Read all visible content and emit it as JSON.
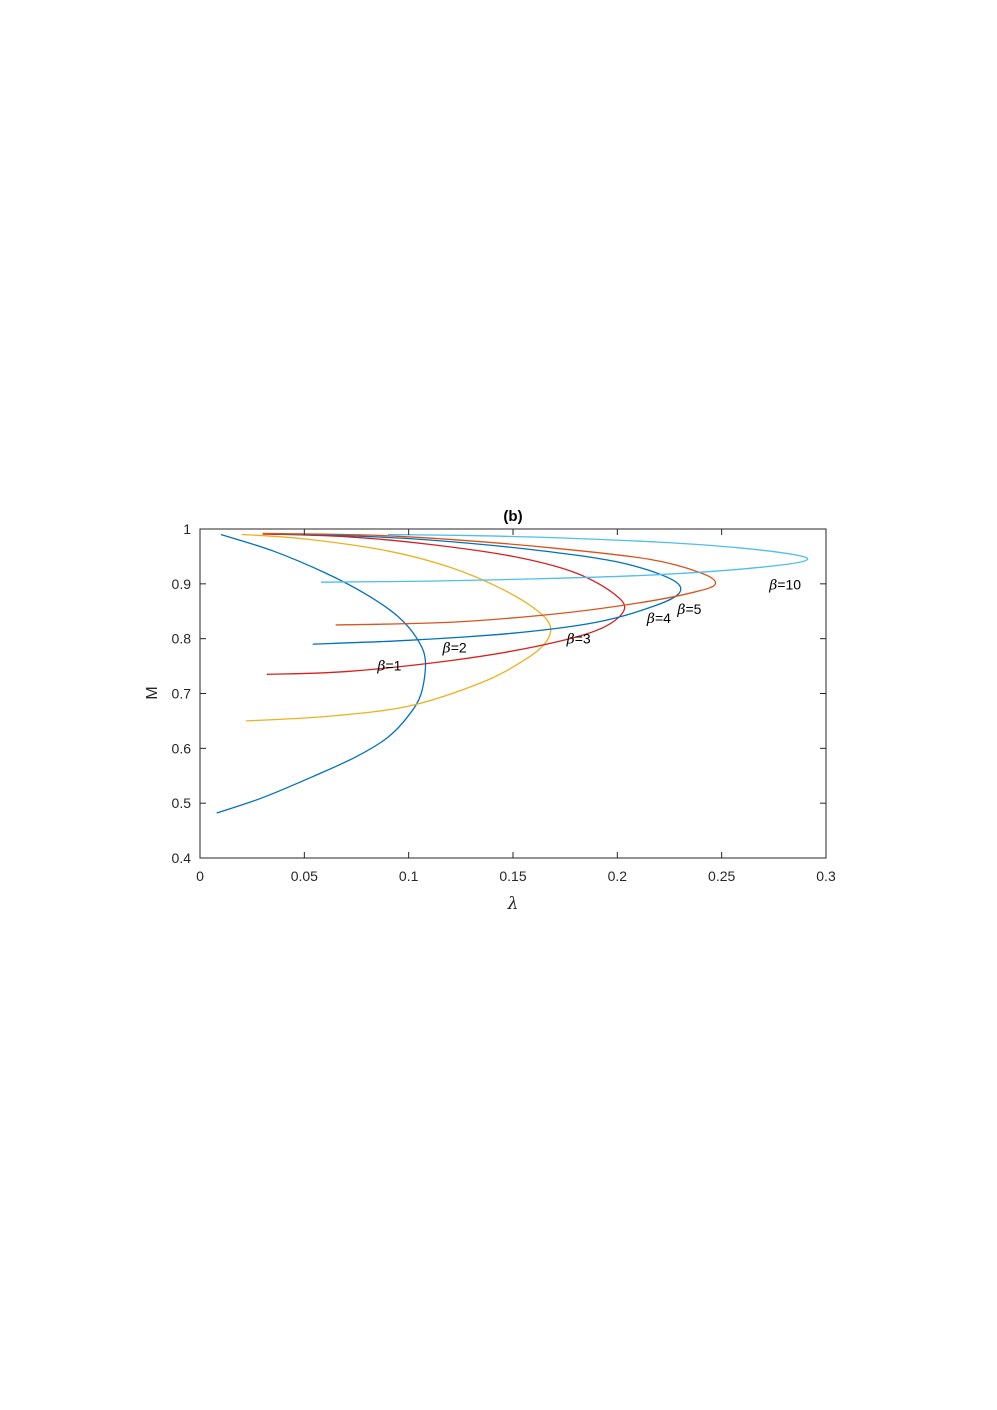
{
  "chart_data": {
    "type": "line",
    "title": "(b)",
    "xlabel": "λ",
    "ylabel": "M",
    "xlim": [
      0,
      0.3
    ],
    "ylim": [
      0.4,
      1
    ],
    "xticks": [
      0,
      0.05,
      0.1,
      0.15,
      0.2,
      0.25,
      0.3
    ],
    "xtick_labels": [
      "0",
      "0.05",
      "0.1",
      "0.15",
      "0.2",
      "0.25",
      "0.3"
    ],
    "yticks": [
      0.4,
      0.5,
      0.6,
      0.7,
      0.8,
      0.9,
      1
    ],
    "ytick_labels": [
      "0.4",
      "0.5",
      "0.6",
      "0.7",
      "0.8",
      "0.9",
      "1"
    ],
    "grid": false,
    "legend": "none",
    "series": [
      {
        "name": "β=1",
        "label": "β=1",
        "color": "#0072BD",
        "points": [
          [
            0.008,
            0.482
          ],
          [
            0.03,
            0.51
          ],
          [
            0.055,
            0.55
          ],
          [
            0.075,
            0.585
          ],
          [
            0.09,
            0.62
          ],
          [
            0.1,
            0.66
          ],
          [
            0.106,
            0.7
          ],
          [
            0.108,
            0.76
          ],
          [
            0.104,
            0.8
          ],
          [
            0.095,
            0.84
          ],
          [
            0.08,
            0.88
          ],
          [
            0.06,
            0.92
          ],
          [
            0.035,
            0.96
          ],
          [
            0.01,
            0.99
          ]
        ]
      },
      {
        "name": "β=2",
        "label": "β=2",
        "color": "#EDB120",
        "points": [
          [
            0.022,
            0.65
          ],
          [
            0.06,
            0.658
          ],
          [
            0.1,
            0.677
          ],
          [
            0.135,
            0.72
          ],
          [
            0.155,
            0.76
          ],
          [
            0.165,
            0.79
          ],
          [
            0.168,
            0.82
          ],
          [
            0.162,
            0.85
          ],
          [
            0.145,
            0.89
          ],
          [
            0.12,
            0.93
          ],
          [
            0.09,
            0.96
          ],
          [
            0.05,
            0.982
          ],
          [
            0.02,
            0.99
          ]
        ]
      },
      {
        "name": "β=3",
        "label": "β=3",
        "color": "#D62020",
        "points": [
          [
            0.032,
            0.735
          ],
          [
            0.07,
            0.74
          ],
          [
            0.12,
            0.76
          ],
          [
            0.16,
            0.785
          ],
          [
            0.19,
            0.815
          ],
          [
            0.203,
            0.85
          ],
          [
            0.199,
            0.88
          ],
          [
            0.18,
            0.92
          ],
          [
            0.15,
            0.95
          ],
          [
            0.11,
            0.972
          ],
          [
            0.07,
            0.986
          ],
          [
            0.03,
            0.991
          ]
        ]
      },
      {
        "name": "β=4",
        "label": "β=4",
        "color": "#0072BD",
        "points": [
          [
            0.054,
            0.79
          ],
          [
            0.1,
            0.797
          ],
          [
            0.15,
            0.81
          ],
          [
            0.19,
            0.83
          ],
          [
            0.218,
            0.86
          ],
          [
            0.23,
            0.885
          ],
          [
            0.225,
            0.91
          ],
          [
            0.2,
            0.94
          ],
          [
            0.16,
            0.962
          ],
          [
            0.11,
            0.98
          ],
          [
            0.07,
            0.988
          ],
          [
            0.038,
            0.991
          ]
        ]
      },
      {
        "name": "β=5",
        "label": "β=5",
        "color": "#D95319",
        "points": [
          [
            0.065,
            0.825
          ],
          [
            0.12,
            0.83
          ],
          [
            0.17,
            0.845
          ],
          [
            0.21,
            0.865
          ],
          [
            0.237,
            0.885
          ],
          [
            0.247,
            0.9
          ],
          [
            0.24,
            0.92
          ],
          [
            0.215,
            0.945
          ],
          [
            0.17,
            0.965
          ],
          [
            0.12,
            0.981
          ],
          [
            0.08,
            0.989
          ],
          [
            0.03,
            0.992
          ]
        ]
      },
      {
        "name": "β=10",
        "label": "β=10",
        "color": "#4DBEEE",
        "points": [
          [
            0.058,
            0.903
          ],
          [
            0.11,
            0.905
          ],
          [
            0.16,
            0.909
          ],
          [
            0.21,
            0.915
          ],
          [
            0.25,
            0.924
          ],
          [
            0.28,
            0.935
          ],
          [
            0.291,
            0.944
          ],
          [
            0.285,
            0.953
          ],
          [
            0.26,
            0.965
          ],
          [
            0.22,
            0.976
          ],
          [
            0.17,
            0.984
          ],
          [
            0.13,
            0.988
          ],
          [
            0.09,
            0.99
          ]
        ]
      }
    ]
  }
}
